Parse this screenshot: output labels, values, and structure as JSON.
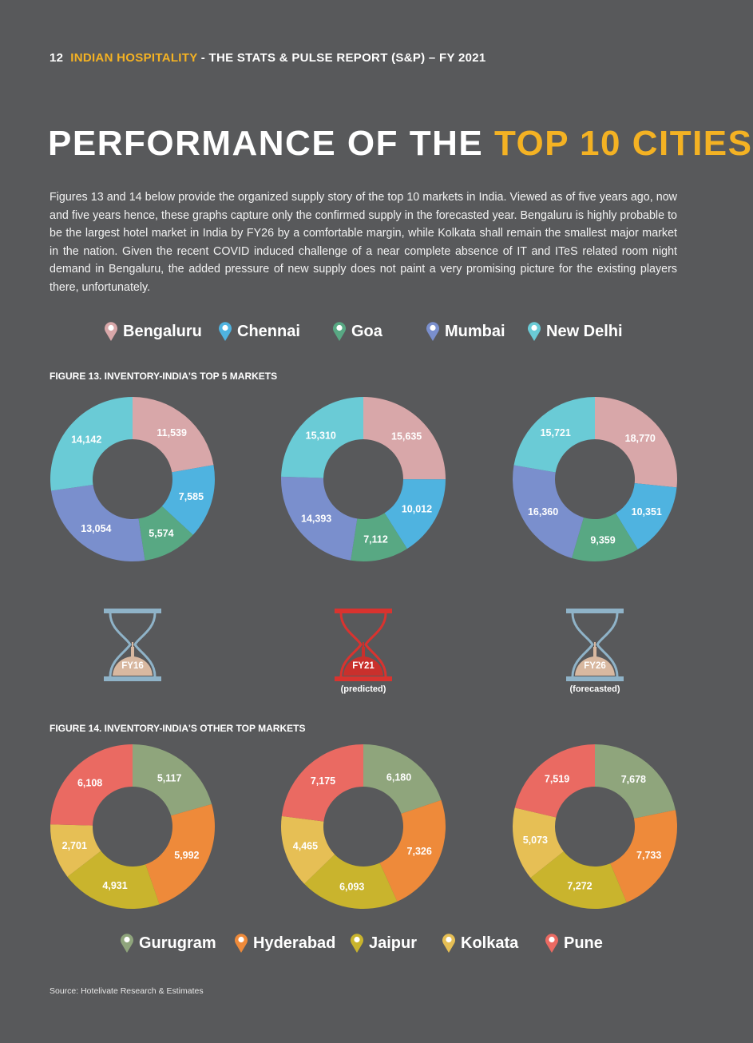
{
  "header": {
    "page_number": "12",
    "brand": "INDIAN HOSPITALITY",
    "rest": " - THE STATS & PULSE REPORT (S&P) – FY 2021"
  },
  "title": {
    "part1": "PERFORMANCE OF THE ",
    "part2": "TOP 10 CITIES"
  },
  "intro": "Figures 13 and 14 below provide the organized supply story of the top 10 markets in India. Viewed as of five years ago, now and five years hence, these graphs capture only the confirmed supply in the forecasted year. Bengaluru is highly probable to be the largest hotel market in India by FY26 by a comfortable margin, while Kolkata shall remain the smallest major market in the nation. Given the recent COVID induced challenge of a near complete absence of IT and ITeS related room night demand in Bengaluru, the added pressure of new supply does not paint a very promising picture for the existing players there, unfortunately.",
  "colors": {
    "background": "#58595b",
    "accent": "#f4b223",
    "Bengaluru": "#d8a7a9",
    "Chennai": "#4fb3e0",
    "Goa": "#58a883",
    "Mumbai": "#7a8fcd",
    "New Delhi": "#6acbd6",
    "Gurugram": "#8fa57c",
    "Hyderabad": "#ee8a3a",
    "Jaipur": "#c9b42d",
    "Kolkata": "#e6bf55",
    "Pune": "#ea6a62",
    "hourglass_frame": "#8fb3c8",
    "hourglass_frame_active": "#d9332f",
    "hourglass_sand": "#d8b8a0",
    "hourglass_sand_active": "#c9302c"
  },
  "legend_top": [
    "Bengaluru",
    "Chennai",
    "Goa",
    "Mumbai",
    "New Delhi"
  ],
  "legend_bottom": [
    "Gurugram",
    "Hyderabad",
    "Jaipur",
    "Kolkata",
    "Pune"
  ],
  "legend_icon": "map-pin-icon",
  "figure13_title": "FIGURE 13. INVENTORY-INDIA'S TOP 5 MARKETS",
  "figure14_title": "FIGURE 14. INVENTORY-INDIA'S OTHER TOP MARKETS",
  "periods": [
    {
      "label": "FY16",
      "note": "",
      "active": false
    },
    {
      "label": "FY21",
      "note": "(predicted)",
      "active": true
    },
    {
      "label": "FY26",
      "note": "(forecasted)",
      "active": false
    }
  ],
  "source": "Source: Hotelivate Research & Estimates",
  "chart_data": [
    {
      "type": "pie",
      "figure": "Figure 13",
      "period": "FY16",
      "categories": [
        "Bengaluru",
        "Chennai",
        "Goa",
        "Mumbai",
        "New Delhi"
      ],
      "values": [
        11539,
        7585,
        5574,
        13054,
        14142
      ],
      "labels": [
        "11,539",
        "7,585",
        "5,574",
        "13,054",
        "14,142"
      ]
    },
    {
      "type": "pie",
      "figure": "Figure 13",
      "period": "FY21",
      "categories": [
        "Bengaluru",
        "Chennai",
        "Goa",
        "Mumbai",
        "New Delhi"
      ],
      "values": [
        15635,
        10012,
        7112,
        14393,
        15310
      ],
      "labels": [
        "15,635",
        "10,012",
        "7,112",
        "14,393",
        "15,310"
      ]
    },
    {
      "type": "pie",
      "figure": "Figure 13",
      "period": "FY26",
      "categories": [
        "Bengaluru",
        "Chennai",
        "Goa",
        "Mumbai",
        "New Delhi"
      ],
      "values": [
        18770,
        10351,
        9359,
        16360,
        15721
      ],
      "labels": [
        "18,770",
        "10,351",
        "9,359",
        "16,360",
        "15,721"
      ]
    },
    {
      "type": "pie",
      "figure": "Figure 14",
      "period": "FY16",
      "categories": [
        "Gurugram",
        "Hyderabad",
        "Jaipur",
        "Kolkata",
        "Pune"
      ],
      "values": [
        5117,
        5992,
        4931,
        2701,
        6108
      ],
      "labels": [
        "5,117",
        "5,992",
        "4,931",
        "2,701",
        "6,108"
      ]
    },
    {
      "type": "pie",
      "figure": "Figure 14",
      "period": "FY21",
      "categories": [
        "Gurugram",
        "Hyderabad",
        "Jaipur",
        "Kolkata",
        "Pune"
      ],
      "values": [
        6180,
        7326,
        6093,
        4465,
        7175
      ],
      "labels": [
        "6,180",
        "7,326",
        "6,093",
        "4,465",
        "7,175"
      ]
    },
    {
      "type": "pie",
      "figure": "Figure 14",
      "period": "FY26",
      "categories": [
        "Gurugram",
        "Hyderabad",
        "Jaipur",
        "Kolkata",
        "Pune"
      ],
      "values": [
        7678,
        7733,
        7272,
        5073,
        7519
      ],
      "labels": [
        "7,678",
        "7,733",
        "7,272",
        "5,073",
        "7,519"
      ]
    }
  ]
}
